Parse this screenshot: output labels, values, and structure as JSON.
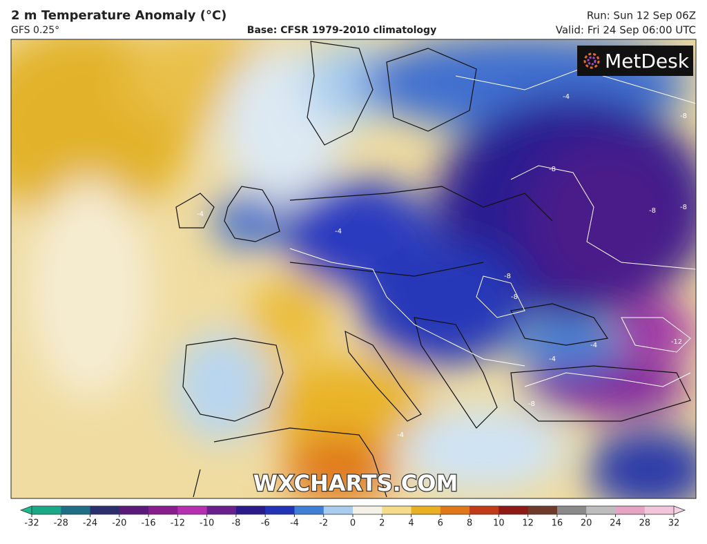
{
  "header": {
    "title": "2 m Temperature Anomaly (°C)",
    "model": "GFS 0.25°",
    "base": "Base: CFSR 1979-2010 climatology",
    "run": "Run: Sun 12 Sep 06Z",
    "valid": "Valid: Fri 24 Sep 06:00 UTC"
  },
  "logo": "MetDesk",
  "watermark": "WXCHARTS.COM",
  "contour_labels": [
    -4,
    -4,
    -4,
    -8,
    -8,
    -8,
    -8,
    -8,
    -12,
    -4,
    -8,
    -4,
    -4,
    -8
  ],
  "colorbar": {
    "ticks": [
      -32,
      -28,
      -24,
      -20,
      -16,
      -12,
      -10,
      -8,
      -6,
      -4,
      -2,
      0,
      2,
      4,
      6,
      8,
      10,
      12,
      16,
      20,
      24,
      28,
      32
    ],
    "colors": [
      "#1aa887",
      "#1e6f86",
      "#2b2f6e",
      "#5b1a7a",
      "#8a1d8e",
      "#b52fb0",
      "#6a1f8f",
      "#2a1a8a",
      "#2233b8",
      "#3f7fd6",
      "#a9cdee",
      "#f4f1e6",
      "#f5dc8a",
      "#e9b024",
      "#e0781a",
      "#c23b17",
      "#8d1a14",
      "#6e3a2a",
      "#8a8a8a",
      "#bdbdbd",
      "#e6a4c4",
      "#f2c6da"
    ],
    "low_color": "#1fb892",
    "high_color": "#f6d3e3"
  }
}
